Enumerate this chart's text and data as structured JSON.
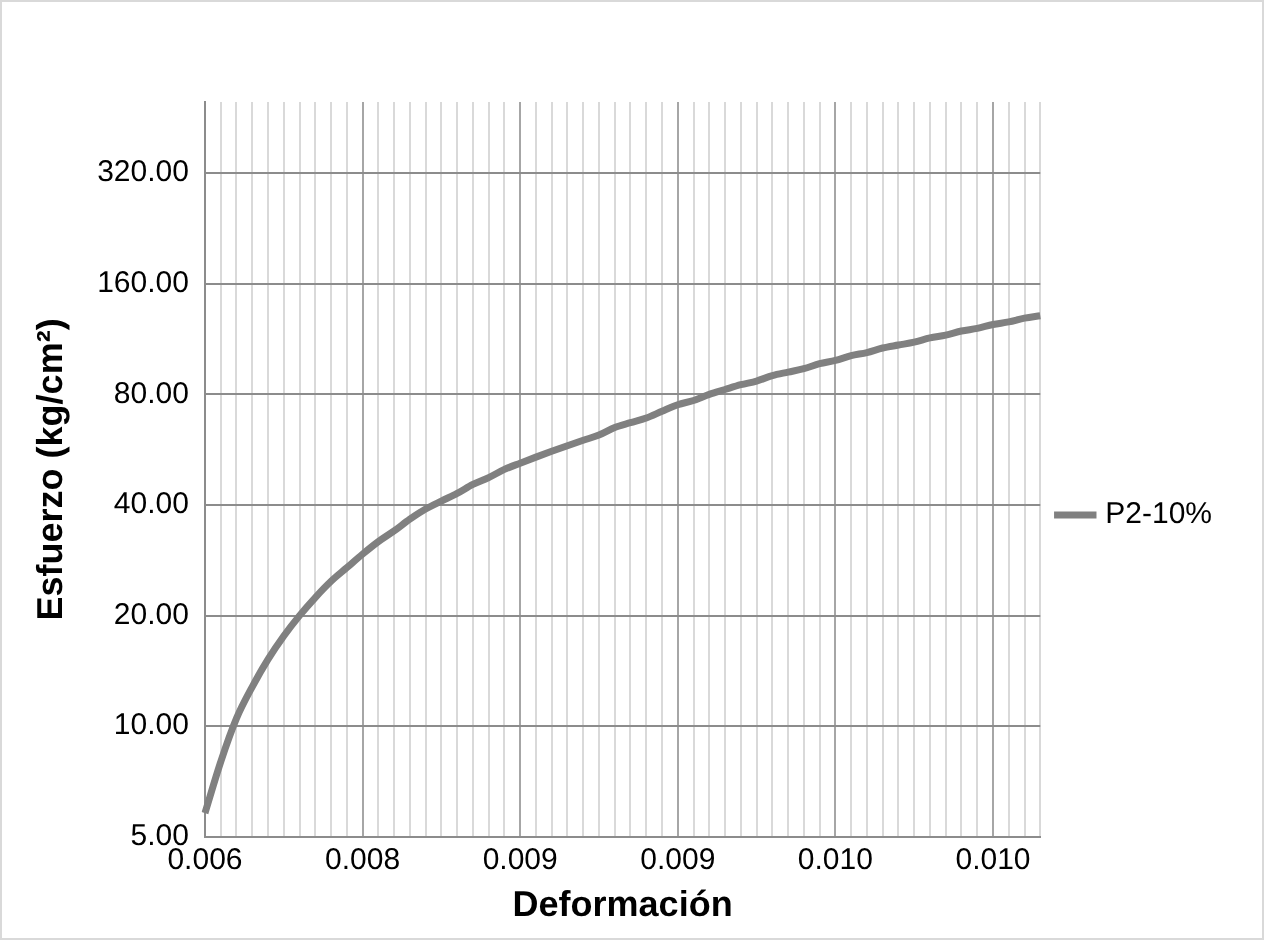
{
  "chart_data": {
    "type": "line",
    "xlabel": "Deformación",
    "ylabel": "Esfuerzo (kg/cm²)",
    "log": "y",
    "grid": true,
    "legend": "right",
    "marker": "none",
    "line_style": "solid",
    "categories": [
      "0.006",
      null,
      null,
      null,
      null,
      null,
      null,
      null,
      null,
      null,
      "0.008",
      null,
      null,
      null,
      null,
      null,
      null,
      null,
      null,
      null,
      "0.009",
      null,
      null,
      null,
      null,
      null,
      null,
      null,
      null,
      null,
      "0.009",
      null,
      null,
      null,
      null,
      null,
      null,
      null,
      null,
      null,
      "0.010",
      null,
      null,
      null,
      null,
      null,
      null,
      null,
      null,
      null,
      "0.010",
      null,
      null,
      null
    ],
    "series": [
      {
        "name": "P2-10%",
        "color": "#808080",
        "values": [
          5.8,
          8,
          10.5,
          12.8,
          15.2,
          17.6,
          20,
          22.4,
          24.8,
          27,
          29.4,
          31.8,
          34,
          36.6,
          39,
          41,
          43,
          45.5,
          47.5,
          50,
          52,
          54,
          56,
          58,
          60,
          62,
          65,
          67,
          69,
          72,
          75,
          77,
          80,
          82.5,
          85,
          87,
          90,
          92,
          94,
          97,
          99,
          102,
          104,
          107,
          109,
          111,
          114,
          116,
          119,
          121,
          124,
          126,
          129,
          131
        ]
      }
    ],
    "ylim": [
      5,
      500
    ],
    "yticks": [
      {
        "value": 5,
        "label": "5.00"
      },
      {
        "value": 10,
        "label": "10.00"
      },
      {
        "value": 20,
        "label": "20.00"
      },
      {
        "value": 40,
        "label": "40.00"
      },
      {
        "value": 80,
        "label": "80.00"
      },
      {
        "value": 160,
        "label": "160.00"
      },
      {
        "value": 320,
        "label": "320.00"
      }
    ]
  }
}
